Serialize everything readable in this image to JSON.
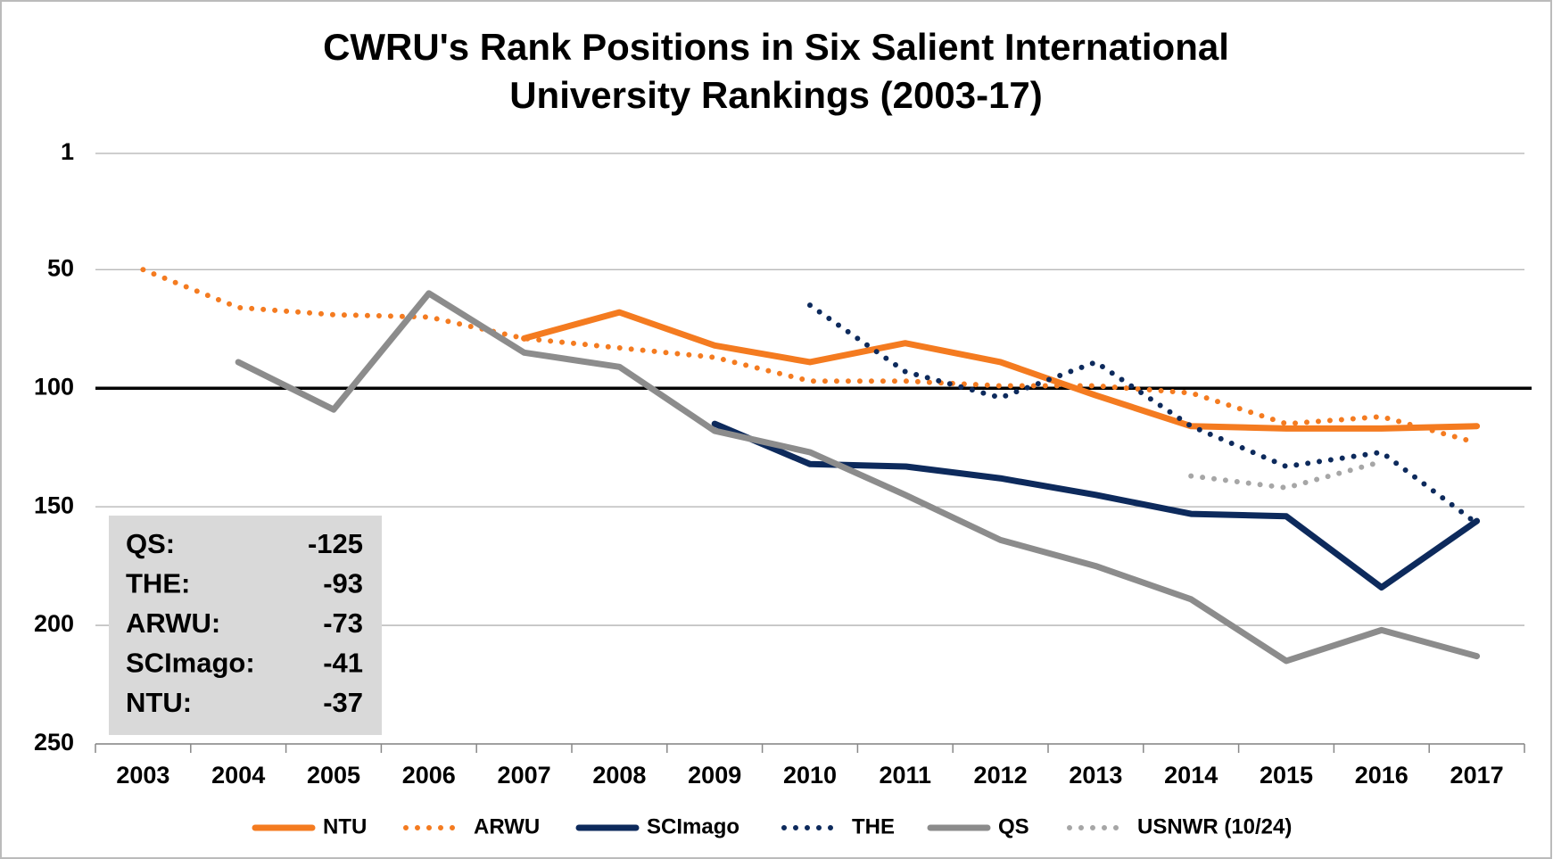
{
  "chart_data": {
    "type": "line",
    "title": "CWRU's Rank Positions in Six Salient International University Rankings (2003-17)",
    "categories": [
      "2003",
      "2004",
      "2005",
      "2006",
      "2007",
      "2008",
      "2009",
      "2010",
      "2011",
      "2012",
      "2013",
      "2014",
      "2015",
      "2016",
      "2017"
    ],
    "ylim": [
      1,
      250
    ],
    "yticks": [
      1,
      50,
      100,
      150,
      200,
      250
    ],
    "y_inverted": true,
    "grid": true,
    "reference_line": 100,
    "legend": "bottom",
    "series": [
      {
        "name": "NTU",
        "color": "#f47b20",
        "style": "solid",
        "values": [
          null,
          null,
          null,
          null,
          79,
          68,
          82,
          89,
          81,
          89,
          103,
          116,
          117,
          117,
          116
        ]
      },
      {
        "name": "ARWU",
        "color": "#f47b20",
        "style": "dotted",
        "values": [
          50,
          66,
          69,
          70,
          79,
          83,
          87,
          97,
          97,
          99,
          99,
          102,
          115,
          112,
          123
        ]
      },
      {
        "name": "SCImago",
        "color": "#0d2a5c",
        "style": "solid",
        "values": [
          null,
          null,
          null,
          null,
          null,
          null,
          115,
          132,
          133,
          138,
          145,
          153,
          154,
          184,
          156
        ]
      },
      {
        "name": "THE",
        "color": "#0d2a5c",
        "style": "dotted",
        "values": [
          null,
          null,
          null,
          null,
          null,
          null,
          null,
          65,
          93,
          104,
          89,
          116,
          133,
          127,
          157
        ]
      },
      {
        "name": "QS",
        "color": "#8c8c8c",
        "style": "solid",
        "values": [
          null,
          89,
          109,
          60,
          85,
          91,
          118,
          127,
          145,
          164,
          175,
          189,
          215,
          202,
          213
        ]
      },
      {
        "name": "USNWR (10/24)",
        "color": "#a6a6a6",
        "style": "dotted",
        "values": [
          null,
          null,
          null,
          null,
          null,
          null,
          null,
          null,
          null,
          null,
          null,
          137,
          142,
          131,
          null
        ]
      }
    ],
    "summary": [
      {
        "label": "QS:",
        "value": -125
      },
      {
        "label": "THE:",
        "value": -93
      },
      {
        "label": "ARWU:",
        "value": -73
      },
      {
        "label": "SCImago:",
        "value": -41
      },
      {
        "label": "NTU:",
        "value": -37
      }
    ]
  }
}
